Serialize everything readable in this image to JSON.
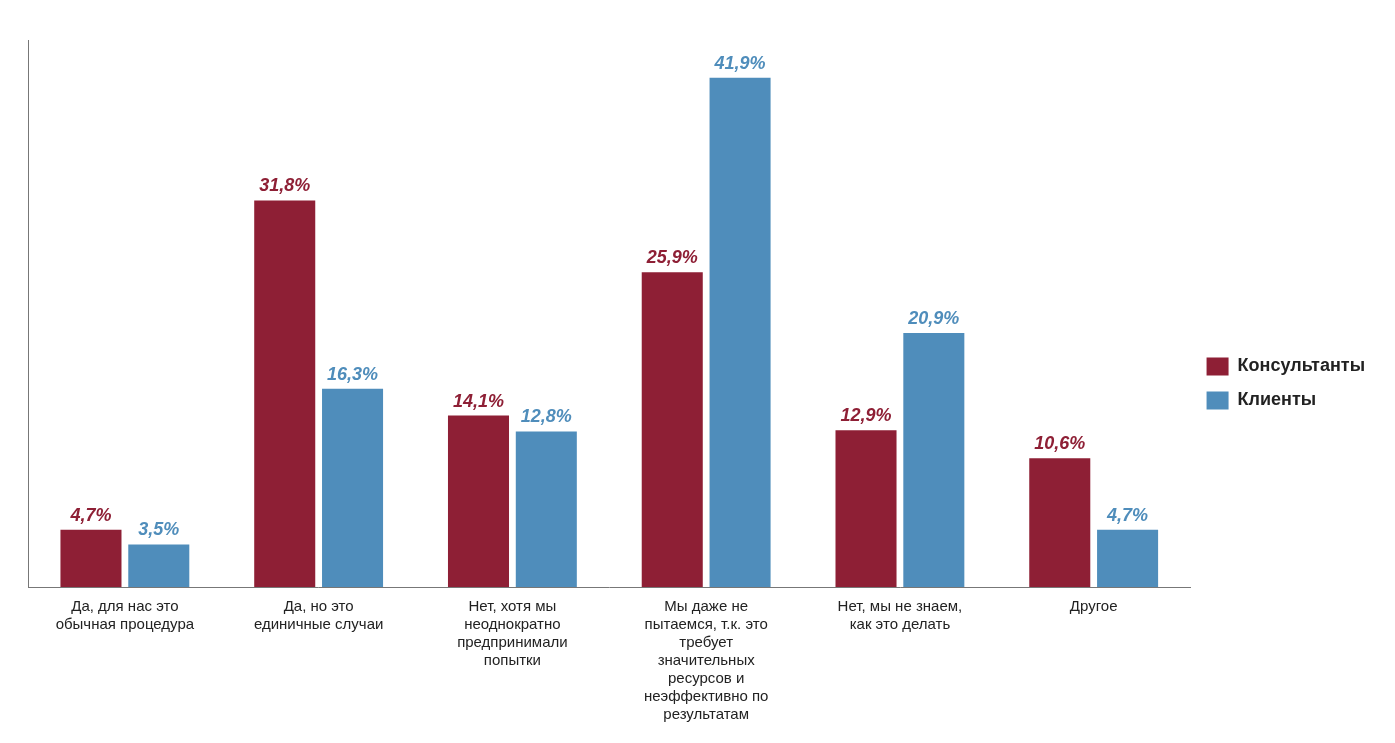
{
  "chart_data": {
    "type": "bar",
    "categories": [
      "Да, для нас это обычная процедура",
      "Да, но это единичные случаи",
      "Нет, хотя мы неоднократно предпринимали попытки",
      "Мы даже не пытаемся, т.к. это требует значительных ресурсов и неэффективно по результатам",
      "Нет, мы не знаем, как это делать",
      "Другое"
    ],
    "series": [
      {
        "name": "Консультанты",
        "color": "#8e1f35",
        "values": [
          4.7,
          31.8,
          14.1,
          25.9,
          12.9,
          10.6
        ],
        "value_labels": [
          "4,7%",
          "31,8%",
          "14,1%",
          "25,9%",
          "12,9%",
          "10,6%"
        ]
      },
      {
        "name": "Клиенты",
        "color": "#4f8dbb",
        "values": [
          3.5,
          16.3,
          12.8,
          41.9,
          20.9,
          4.7
        ],
        "value_labels": [
          "3,5%",
          "16,3%",
          "12,8%",
          "41,9%",
          "20,9%",
          "4,7%"
        ]
      }
    ],
    "ylim": [
      0,
      45
    ],
    "grid": false,
    "legend": "right",
    "data_labels": true,
    "tick_labels": "x"
  }
}
